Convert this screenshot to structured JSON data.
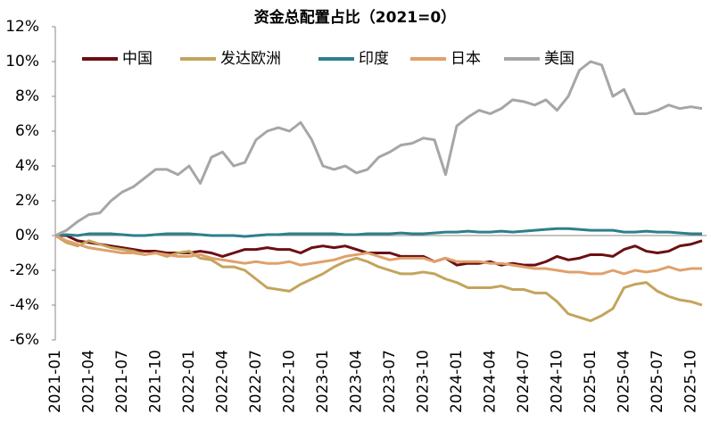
{
  "chart_data": {
    "type": "line",
    "title": "资金总配置占比（2021=0）",
    "x": [
      "2021-01",
      "2021-02",
      "2021-03",
      "2021-04",
      "2021-05",
      "2021-06",
      "2021-07",
      "2021-08",
      "2021-09",
      "2021-10",
      "2021-11",
      "2021-12",
      "2022-01",
      "2022-02",
      "2022-03",
      "2022-04",
      "2022-05",
      "2022-06",
      "2022-07",
      "2022-08",
      "2022-09",
      "2022-10",
      "2022-11",
      "2022-12",
      "2023-01",
      "2023-02",
      "2023-03",
      "2023-04",
      "2023-05",
      "2023-06",
      "2023-07",
      "2023-08",
      "2023-09",
      "2023-10",
      "2023-11",
      "2023-12",
      "2024-01",
      "2024-02",
      "2024-03",
      "2024-04",
      "2024-05",
      "2024-06",
      "2024-07",
      "2024-08",
      "2024-09",
      "2024-10",
      "2024-11",
      "2024-12",
      "2025-01",
      "2025-02",
      "2025-03",
      "2025-04",
      "2025-05",
      "2025-06",
      "2025-07",
      "2025-08",
      "2025-09",
      "2025-10",
      "2025-11"
    ],
    "xticks": [
      "2021-01",
      "2021-04",
      "2021-07",
      "2021-10",
      "2022-01",
      "2022-04",
      "2022-07",
      "2022-10",
      "2023-01",
      "2023-04",
      "2023-07",
      "2023-10",
      "2024-01",
      "2024-04",
      "2024-07",
      "2024-10",
      "2025-01",
      "2025-04",
      "2025-07",
      "2025-10"
    ],
    "ylim": [
      -6,
      12
    ],
    "yticks": [
      {
        "value": -6,
        "label": "-6%"
      },
      {
        "value": -4,
        "label": "-4%"
      },
      {
        "value": -2,
        "label": "-2%"
      },
      {
        "value": 0,
        "label": "0%"
      },
      {
        "value": 2,
        "label": "2%"
      },
      {
        "value": 4,
        "label": "4%"
      },
      {
        "value": 6,
        "label": "6%"
      },
      {
        "value": 8,
        "label": "8%"
      },
      {
        "value": 10,
        "label": "10%"
      },
      {
        "value": 12,
        "label": "12%"
      }
    ],
    "series": [
      {
        "name": "中国",
        "color": "#6b0f12",
        "values": [
          0,
          0,
          -0.3,
          -0.4,
          -0.5,
          -0.6,
          -0.7,
          -0.8,
          -0.9,
          -0.9,
          -1.0,
          -1.0,
          -1.0,
          -0.9,
          -1.0,
          -1.2,
          -1.0,
          -0.8,
          -0.8,
          -0.7,
          -0.8,
          -0.8,
          -1.0,
          -0.7,
          -0.6,
          -0.7,
          -0.6,
          -0.8,
          -1.0,
          -1.0,
          -1.0,
          -1.2,
          -1.2,
          -1.2,
          -1.5,
          -1.3,
          -1.7,
          -1.6,
          -1.6,
          -1.5,
          -1.7,
          -1.6,
          -1.7,
          -1.7,
          -1.5,
          -1.2,
          -1.4,
          -1.3,
          -1.1,
          -1.1,
          -1.2,
          -0.8,
          -0.6,
          -0.9,
          -1.0,
          -0.9,
          -0.6,
          -0.5,
          -0.3
        ]
      },
      {
        "name": "发达欧洲",
        "color": "#c4a45c",
        "values": [
          0,
          -0.4,
          -0.6,
          -0.3,
          -0.5,
          -0.7,
          -0.8,
          -0.9,
          -1.1,
          -1.0,
          -1.2,
          -1.0,
          -0.9,
          -1.3,
          -1.4,
          -1.8,
          -1.8,
          -2.0,
          -2.5,
          -3.0,
          -3.1,
          -3.2,
          -2.8,
          -2.5,
          -2.2,
          -1.8,
          -1.5,
          -1.3,
          -1.5,
          -1.8,
          -2.0,
          -2.2,
          -2.2,
          -2.1,
          -2.2,
          -2.5,
          -2.7,
          -3.0,
          -3.0,
          -3.0,
          -2.9,
          -3.1,
          -3.1,
          -3.3,
          -3.3,
          -3.8,
          -4.5,
          -4.7,
          -4.9,
          -4.6,
          -4.2,
          -3.0,
          -2.8,
          -2.7,
          -3.2,
          -3.5,
          -3.7,
          -3.8,
          -4.0
        ]
      },
      {
        "name": "印度",
        "color": "#2e7f8c",
        "values": [
          0,
          0.05,
          0,
          0.1,
          0.1,
          0.1,
          0.05,
          0,
          0,
          0.05,
          0.1,
          0.1,
          0.1,
          0.05,
          0,
          0,
          0,
          -0.05,
          0,
          0.05,
          0.05,
          0.1,
          0.1,
          0.1,
          0.1,
          0.1,
          0.05,
          0.05,
          0.1,
          0.1,
          0.1,
          0.15,
          0.1,
          0.1,
          0.15,
          0.2,
          0.2,
          0.25,
          0.2,
          0.2,
          0.25,
          0.2,
          0.25,
          0.3,
          0.35,
          0.4,
          0.4,
          0.35,
          0.3,
          0.3,
          0.3,
          0.2,
          0.2,
          0.25,
          0.2,
          0.2,
          0.15,
          0.1,
          0.1
        ]
      },
      {
        "name": "日本",
        "color": "#e0a06b",
        "values": [
          0,
          -0.3,
          -0.5,
          -0.7,
          -0.8,
          -0.9,
          -1.0,
          -1.0,
          -1.1,
          -1.0,
          -1.1,
          -1.2,
          -1.2,
          -1.1,
          -1.3,
          -1.4,
          -1.5,
          -1.6,
          -1.5,
          -1.6,
          -1.6,
          -1.5,
          -1.7,
          -1.6,
          -1.5,
          -1.4,
          -1.2,
          -1.1,
          -1.0,
          -1.2,
          -1.4,
          -1.3,
          -1.3,
          -1.3,
          -1.5,
          -1.3,
          -1.5,
          -1.5,
          -1.5,
          -1.6,
          -1.6,
          -1.7,
          -1.8,
          -1.9,
          -1.9,
          -2.0,
          -2.1,
          -2.1,
          -2.2,
          -2.2,
          -2.0,
          -2.2,
          -2.0,
          -2.1,
          -2.0,
          -1.8,
          -2.0,
          -1.9,
          -1.9
        ]
      },
      {
        "name": "美国",
        "color": "#a6a6a6",
        "values": [
          0,
          0.3,
          0.8,
          1.2,
          1.3,
          2.0,
          2.5,
          2.8,
          3.3,
          3.8,
          3.8,
          3.5,
          4.0,
          3.0,
          4.5,
          4.8,
          4.0,
          4.2,
          5.5,
          6.0,
          6.2,
          6.0,
          6.5,
          5.5,
          4.0,
          3.8,
          4.0,
          3.6,
          3.8,
          4.5,
          4.8,
          5.2,
          5.3,
          5.6,
          5.5,
          3.5,
          6.3,
          6.8,
          7.2,
          7.0,
          7.3,
          7.8,
          7.7,
          7.5,
          7.8,
          7.2,
          8.0,
          9.5,
          10.0,
          9.8,
          8.0,
          8.4,
          7.0,
          7.0,
          7.2,
          7.5,
          7.3,
          7.4,
          7.3
        ]
      }
    ]
  }
}
